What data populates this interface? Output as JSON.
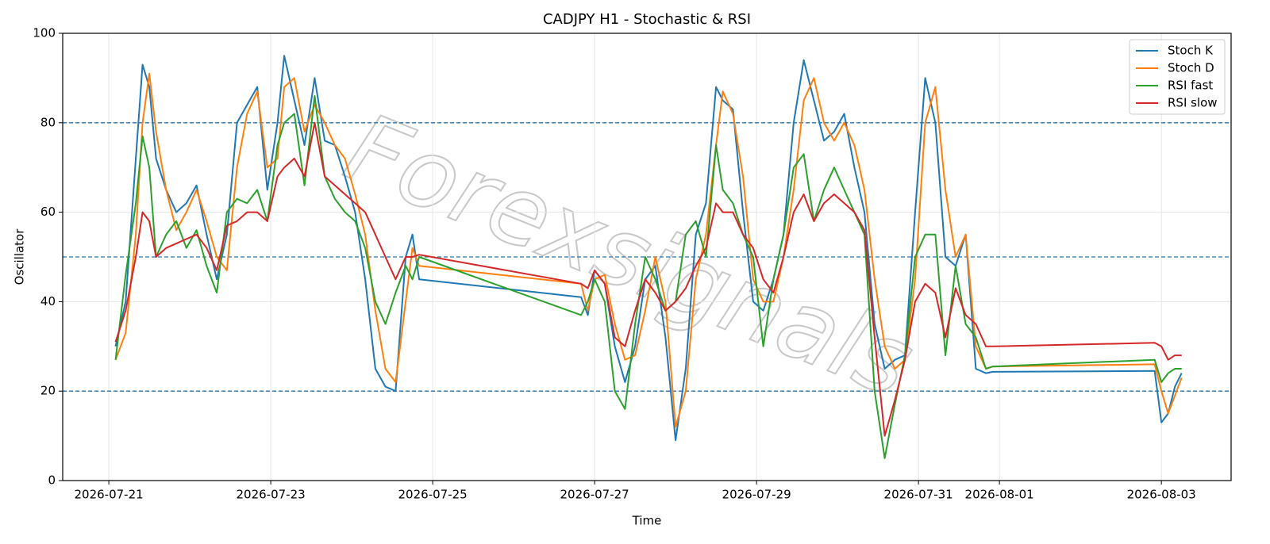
{
  "chart_data": {
    "type": "line",
    "title": "CADJPY H1 - Stochastic & RSI",
    "xlabel": "Time",
    "ylabel": "Oscillator",
    "watermark": "Forexsignals",
    "x": [
      "2026-07-21T02:00",
      "2026-07-21T05:00",
      "2026-07-21T08:00",
      "2026-07-21T10:00",
      "2026-07-21T12:00",
      "2026-07-21T14:00",
      "2026-07-21T17:00",
      "2026-07-21T20:00",
      "2026-07-21T23:00",
      "2026-07-22T02:00",
      "2026-07-22T05:00",
      "2026-07-22T08:00",
      "2026-07-22T11:00",
      "2026-07-22T14:00",
      "2026-07-22T17:00",
      "2026-07-22T20:00",
      "2026-07-22T23:00",
      "2026-07-23T02:00",
      "2026-07-23T04:00",
      "2026-07-23T07:00",
      "2026-07-23T10:00",
      "2026-07-23T13:00",
      "2026-07-23T16:00",
      "2026-07-23T19:00",
      "2026-07-23T22:00",
      "2026-07-24T01:00",
      "2026-07-24T04:00",
      "2026-07-24T07:00",
      "2026-07-24T10:00",
      "2026-07-24T13:00",
      "2026-07-24T16:00",
      "2026-07-24T18:00",
      "2026-07-24T20:00",
      "2026-07-26T20:00",
      "2026-07-26T22:00",
      "2026-07-27T00:00",
      "2026-07-27T03:00",
      "2026-07-27T06:00",
      "2026-07-27T09:00",
      "2026-07-27T12:00",
      "2026-07-27T15:00",
      "2026-07-27T18:00",
      "2026-07-27T21:00",
      "2026-07-28T00:00",
      "2026-07-28T03:00",
      "2026-07-28T06:00",
      "2026-07-28T09:00",
      "2026-07-28T12:00",
      "2026-07-28T14:00",
      "2026-07-28T17:00",
      "2026-07-28T20:00",
      "2026-07-28T23:00",
      "2026-07-29T02:00",
      "2026-07-29T05:00",
      "2026-07-29T08:00",
      "2026-07-29T11:00",
      "2026-07-29T14:00",
      "2026-07-29T17:00",
      "2026-07-29T20:00",
      "2026-07-29T23:00",
      "2026-07-30T02:00",
      "2026-07-30T05:00",
      "2026-07-30T08:00",
      "2026-07-30T11:00",
      "2026-07-30T14:00",
      "2026-07-30T17:00",
      "2026-07-30T20:00",
      "2026-07-30T23:00",
      "2026-07-31T02:00",
      "2026-07-31T05:00",
      "2026-07-31T08:00",
      "2026-07-31T11:00",
      "2026-07-31T14:00",
      "2026-07-31T17:00",
      "2026-07-31T20:00",
      "2026-07-31T22:00",
      "2026-08-02T22:00",
      "2026-08-03T00:00",
      "2026-08-03T02:00",
      "2026-08-03T04:00",
      "2026-08-03T06:00"
    ],
    "series": [
      {
        "name": "Stoch K",
        "color": "#1f77b4",
        "values": [
          30,
          40,
          72,
          93,
          88,
          72,
          65,
          60,
          62,
          66,
          55,
          45,
          55,
          80,
          84,
          88,
          65,
          80,
          95,
          85,
          75,
          90,
          76,
          75,
          68,
          60,
          45,
          25,
          21,
          20,
          50,
          55,
          45,
          41,
          37,
          47,
          44,
          30,
          22,
          30,
          45,
          48,
          32,
          9,
          25,
          55,
          62,
          88,
          85,
          83,
          60,
          40,
          38,
          45,
          55,
          80,
          94,
          85,
          76,
          78,
          82,
          70,
          60,
          35,
          25,
          27,
          28,
          60,
          90,
          80,
          50,
          48,
          55,
          25,
          24,
          24.3,
          24.5,
          13,
          15,
          21,
          24
        ]
      },
      {
        "name": "Stoch D",
        "color": "#ff7f0e",
        "values": [
          27,
          33,
          55,
          80,
          91,
          78,
          65,
          56,
          60,
          65,
          58,
          50,
          47,
          70,
          82,
          87,
          70,
          72,
          88,
          90,
          78,
          84,
          80,
          75,
          72,
          64,
          55,
          38,
          25,
          22,
          40,
          52,
          48,
          44,
          38,
          45,
          46,
          35,
          27,
          28,
          38,
          50,
          40,
          12,
          20,
          45,
          55,
          75,
          87,
          82,
          68,
          45,
          40,
          40,
          50,
          65,
          85,
          90,
          80,
          76,
          80,
          75,
          65,
          45,
          30,
          25,
          27,
          45,
          80,
          88,
          65,
          50,
          55,
          30,
          25,
          25.5,
          26,
          20,
          15,
          19,
          23
        ]
      },
      {
        "name": "RSI fast",
        "color": "#2ca02c",
        "values": [
          27,
          46,
          62,
          77,
          70,
          50,
          55,
          58,
          52,
          56,
          48,
          42,
          60,
          63,
          62,
          65,
          58,
          75,
          80,
          82,
          66,
          86,
          68,
          63,
          60,
          58,
          52,
          40,
          35,
          42,
          48,
          45,
          50,
          37,
          40,
          45,
          40,
          20,
          16,
          35,
          50,
          45,
          38,
          40,
          55,
          58,
          50,
          75,
          65,
          62,
          55,
          50,
          30,
          45,
          55,
          70,
          73,
          58,
          65,
          70,
          65,
          60,
          55,
          20,
          5,
          17,
          28,
          50,
          55,
          55,
          28,
          48,
          35,
          32,
          25,
          25.5,
          27,
          22,
          24,
          25,
          25
        ]
      },
      {
        "name": "RSI slow",
        "color": "#d62728",
        "values": [
          31,
          38,
          50,
          60,
          58,
          50,
          52,
          53,
          54,
          55,
          52,
          47,
          57,
          58,
          60,
          60,
          58,
          68,
          70,
          72,
          68,
          80,
          68,
          66,
          64,
          62,
          60,
          55,
          50,
          45,
          50,
          50,
          50.5,
          44,
          43,
          47,
          44,
          32,
          30,
          38,
          45,
          42,
          38,
          40,
          43,
          48,
          52,
          62,
          60,
          60,
          55,
          52,
          45,
          42,
          50,
          60,
          64,
          58,
          62,
          64,
          62,
          60,
          56,
          32,
          10,
          18,
          27,
          40,
          44,
          42,
          32,
          43,
          37,
          35,
          30,
          30,
          30.8,
          30,
          27,
          28,
          28
        ]
      }
    ],
    "xlim": [
      "2026-07-20T10:20",
      "2026-08-03T20:40"
    ],
    "xticks": [
      "2026-07-21",
      "2026-07-23",
      "2026-07-25",
      "2026-07-27",
      "2026-07-29",
      "2026-07-31",
      "2026-08-01",
      "2026-08-03"
    ],
    "ylim": [
      0,
      100
    ],
    "yticks": [
      0,
      20,
      40,
      60,
      80,
      100
    ],
    "hlines": [
      20,
      50,
      80
    ],
    "hline_color": "#1f77b4",
    "grid": true,
    "legend": "upper right"
  }
}
